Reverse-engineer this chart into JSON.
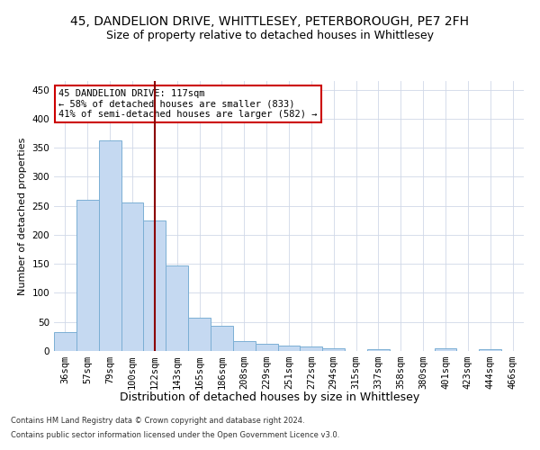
{
  "title_line1": "45, DANDELION DRIVE, WHITTLESEY, PETERBOROUGH, PE7 2FH",
  "title_line2": "Size of property relative to detached houses in Whittlesey",
  "xlabel": "Distribution of detached houses by size in Whittlesey",
  "ylabel": "Number of detached properties",
  "categories": [
    "36sqm",
    "57sqm",
    "79sqm",
    "100sqm",
    "122sqm",
    "143sqm",
    "165sqm",
    "186sqm",
    "208sqm",
    "229sqm",
    "251sqm",
    "272sqm",
    "294sqm",
    "315sqm",
    "337sqm",
    "358sqm",
    "380sqm",
    "401sqm",
    "423sqm",
    "444sqm",
    "466sqm"
  ],
  "values": [
    32,
    260,
    363,
    255,
    225,
    148,
    57,
    44,
    17,
    13,
    9,
    7,
    5,
    0,
    3,
    0,
    0,
    4,
    0,
    3,
    0
  ],
  "bar_color": "#c5d9f1",
  "bar_edge_color": "#7bafd4",
  "vline_x_index": 4,
  "vline_color": "#8b0000",
  "ylim": [
    0,
    465
  ],
  "yticks": [
    0,
    50,
    100,
    150,
    200,
    250,
    300,
    350,
    400,
    450
  ],
  "annotation_text": "45 DANDELION DRIVE: 117sqm\n← 58% of detached houses are smaller (833)\n41% of semi-detached houses are larger (582) →",
  "annotation_box_color": "#ffffff",
  "annotation_box_edge": "#cc0000",
  "footer_line1": "Contains HM Land Registry data © Crown copyright and database right 2024.",
  "footer_line2": "Contains public sector information licensed under the Open Government Licence v3.0.",
  "bg_color": "#ffffff",
  "grid_color": "#d0d8e8",
  "title_fontsize": 10,
  "subtitle_fontsize": 9,
  "tick_fontsize": 7.5,
  "ylabel_fontsize": 8,
  "xlabel_fontsize": 9,
  "annotation_fontsize": 7.5,
  "footer_fontsize": 6
}
